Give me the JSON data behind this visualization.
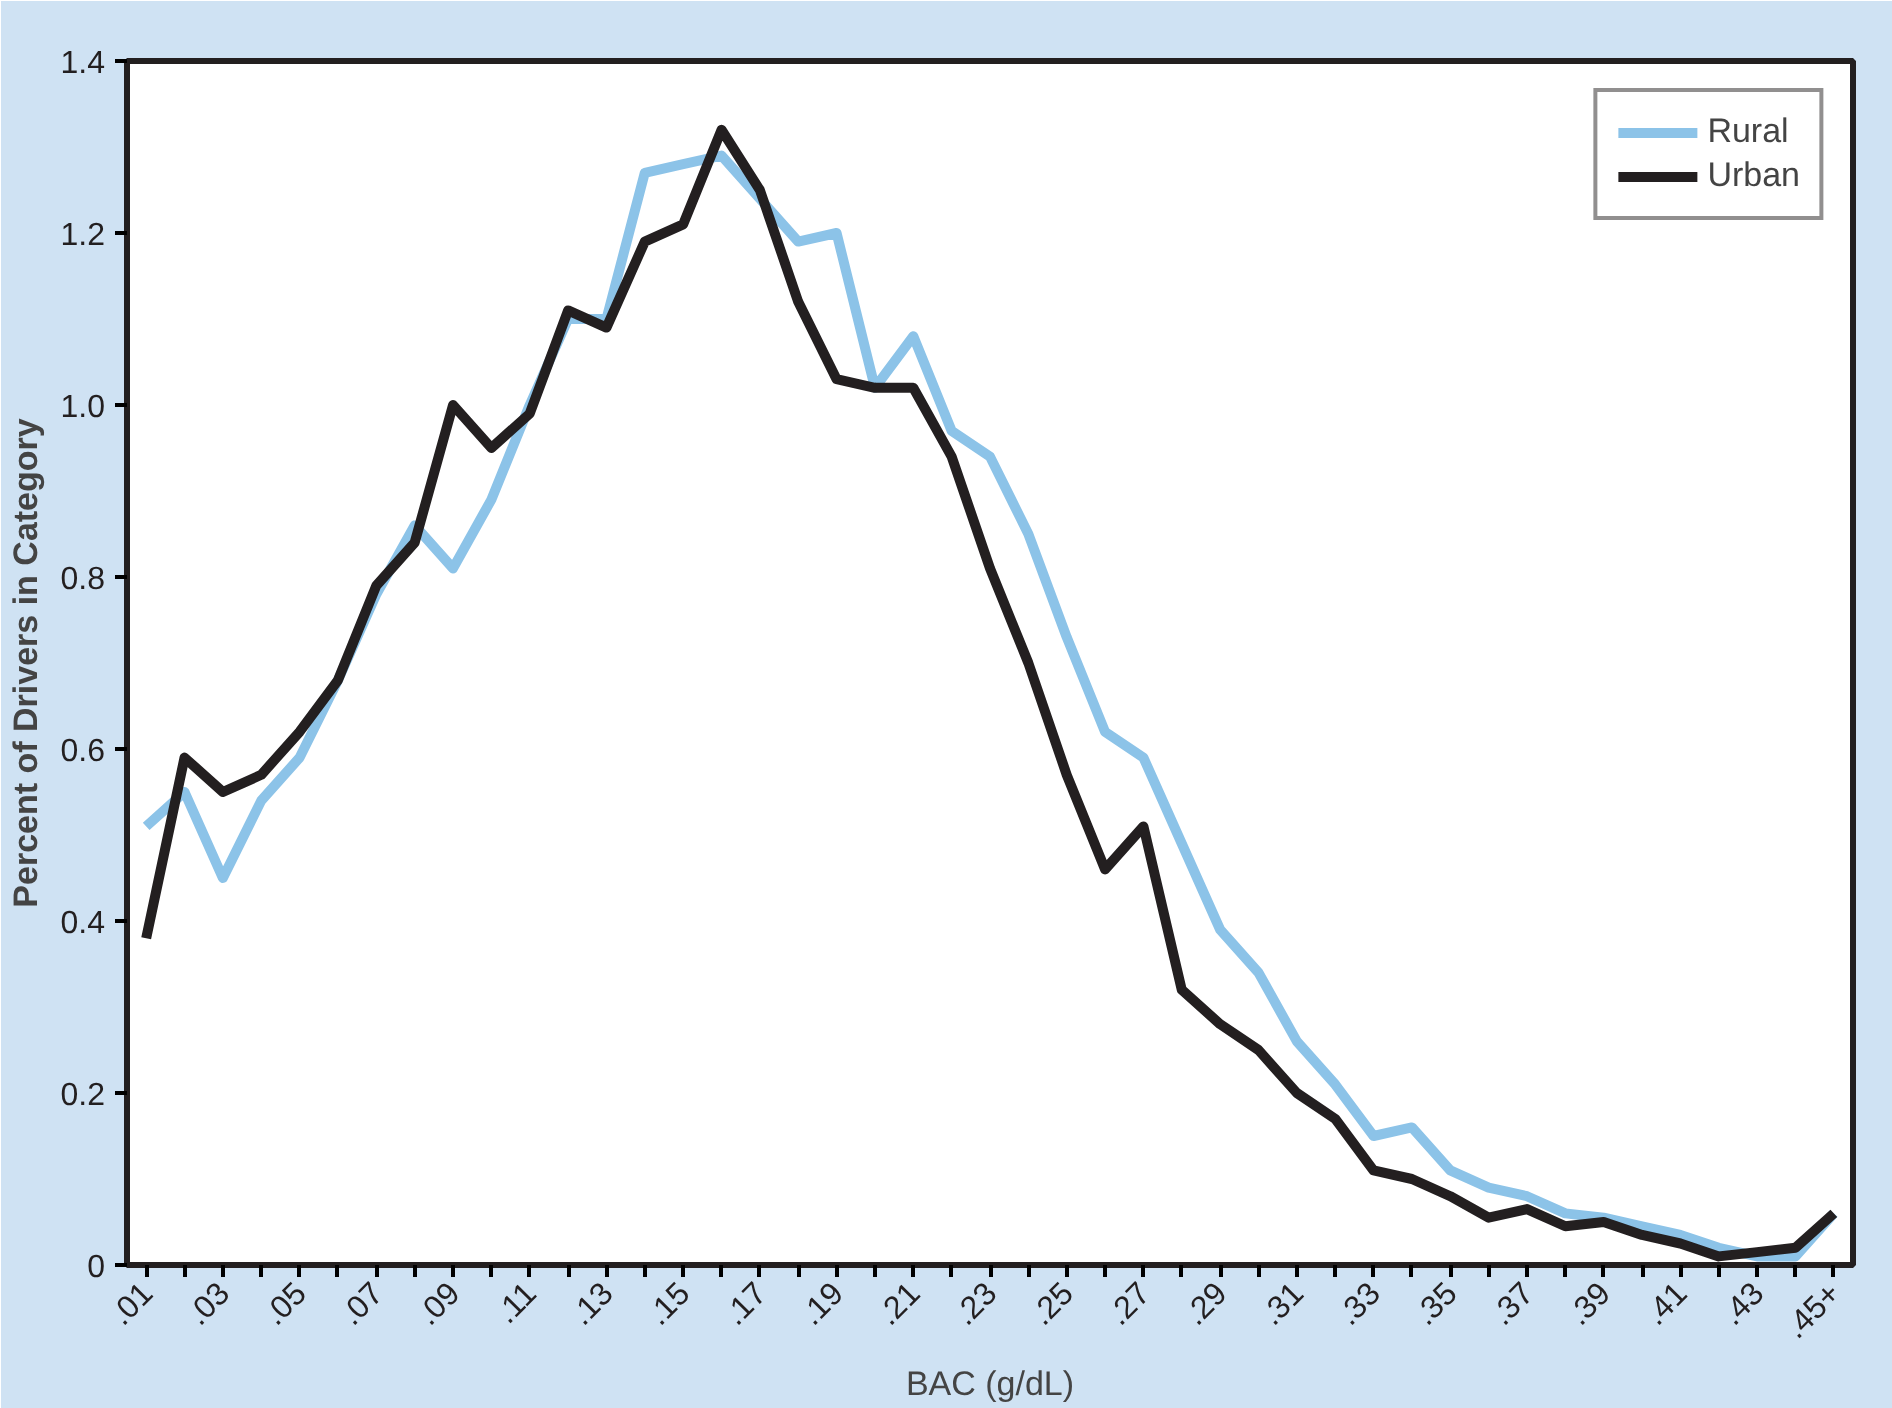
{
  "chart_data": {
    "type": "line",
    "xlabel": "BAC (g/dL)",
    "ylabel": "Percent of Drivers in Category",
    "categories": [
      ".01",
      null,
      ".03",
      null,
      ".05",
      null,
      ".07",
      null,
      ".09",
      null,
      ".11",
      null,
      ".13",
      null,
      ".15",
      null,
      ".17",
      null,
      ".19",
      null,
      ".21",
      null,
      ".23",
      null,
      ".25",
      null,
      ".27",
      null,
      ".29",
      null,
      ".31",
      null,
      ".33",
      null,
      ".35",
      null,
      ".37",
      null,
      ".39",
      null,
      ".41",
      null,
      ".43",
      null,
      ".45+"
    ],
    "series": [
      {
        "name": "Rural",
        "color": "#8cc3e8",
        "values": [
          0.51,
          0.55,
          0.45,
          0.54,
          0.59,
          0.68,
          0.78,
          0.86,
          0.81,
          0.89,
          1.0,
          1.1,
          1.1,
          1.27,
          1.28,
          1.29,
          1.24,
          1.19,
          1.2,
          1.02,
          1.08,
          0.97,
          0.94,
          0.85,
          0.73,
          0.62,
          0.59,
          0.49,
          0.39,
          0.34,
          0.26,
          0.21,
          0.15,
          0.16,
          0.11,
          0.09,
          0.08,
          0.06,
          0.055,
          0.045,
          0.035,
          0.02,
          0.01,
          0.01,
          0.06
        ]
      },
      {
        "name": "Urban",
        "color": "#231f20",
        "values": [
          0.38,
          0.59,
          0.55,
          0.57,
          0.62,
          0.68,
          0.79,
          0.84,
          1.0,
          0.95,
          0.99,
          1.11,
          1.09,
          1.19,
          1.21,
          1.32,
          1.25,
          1.12,
          1.03,
          1.02,
          1.02,
          0.94,
          0.81,
          0.7,
          0.57,
          0.46,
          0.51,
          0.32,
          0.28,
          0.25,
          0.2,
          0.17,
          0.11,
          0.1,
          0.08,
          0.055,
          0.065,
          0.045,
          0.05,
          0.035,
          0.025,
          0.01,
          0.015,
          0.02,
          0.06
        ]
      }
    ],
    "ylim": [
      0,
      1.4
    ],
    "yticks": [
      0,
      0.2,
      0.4,
      0.6,
      0.8,
      {
        "value": 1,
        "label": "1.0"
      },
      1.2,
      1.4
    ],
    "legend": "top right",
    "grid": false,
    "marker": "none",
    "line_style": "solid"
  }
}
